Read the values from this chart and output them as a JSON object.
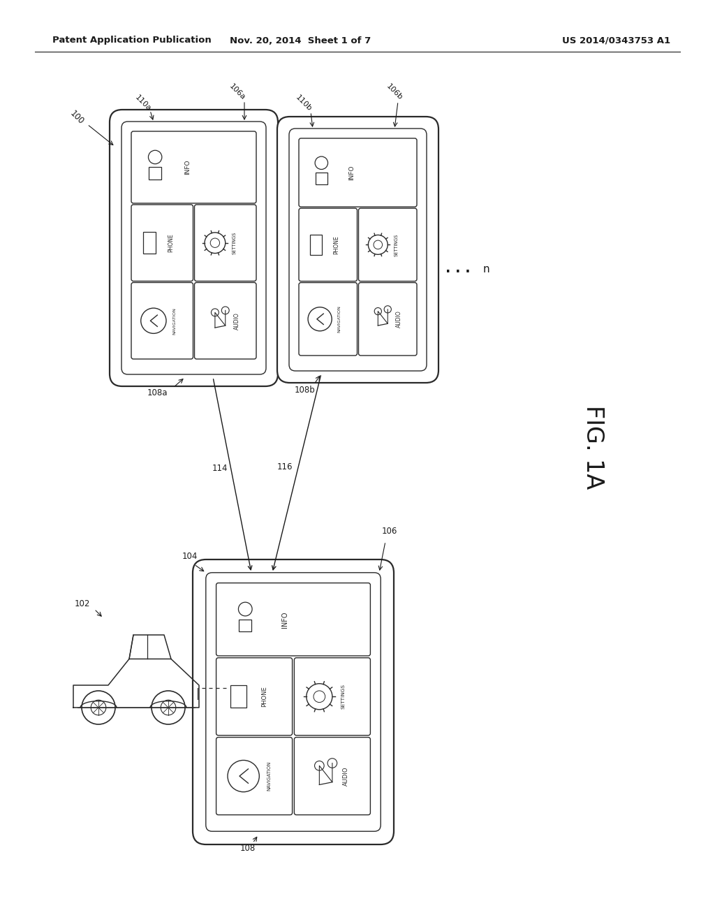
{
  "bg_color": "#ffffff",
  "header_left": "Patent Application Publication",
  "header_mid": "Nov. 20, 2014  Sheet 1 of 7",
  "header_right": "US 2014/0343753 A1",
  "fig_label": "FIG. 1A",
  "line_color": "#2a2a2a",
  "text_color": "#1a1a1a"
}
